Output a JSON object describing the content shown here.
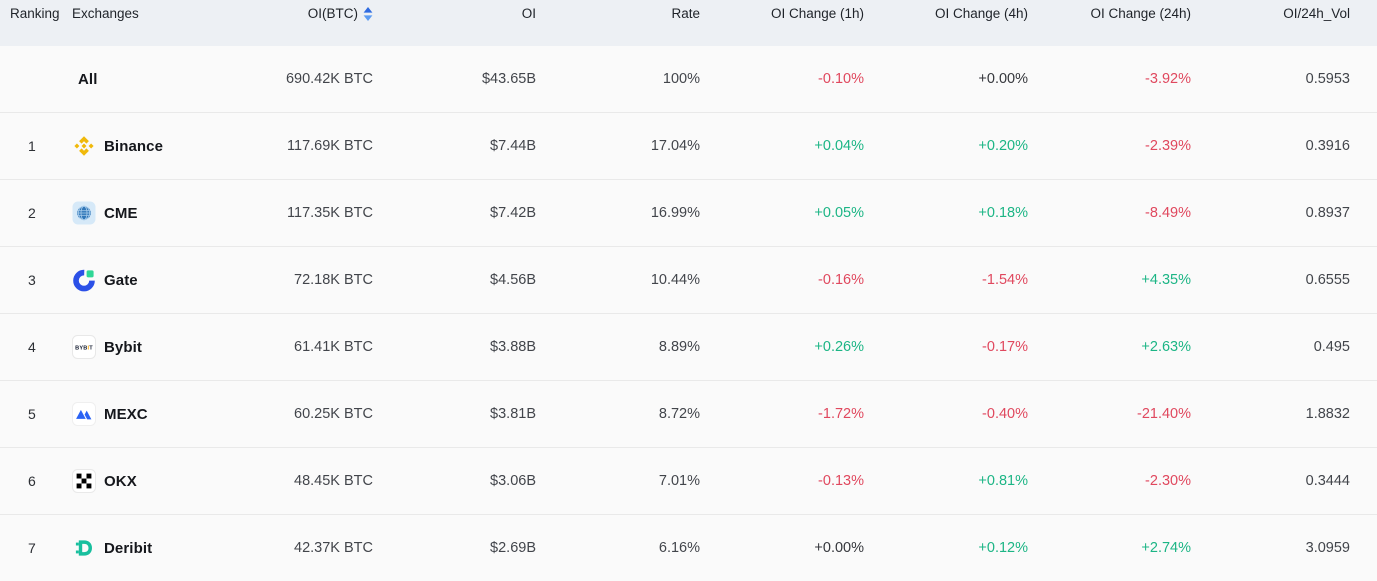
{
  "table": {
    "columns": [
      {
        "key": "ranking",
        "label": "Ranking",
        "align": "left",
        "sortable": false
      },
      {
        "key": "exchanges",
        "label": "Exchanges",
        "align": "left",
        "sortable": false
      },
      {
        "key": "oi_btc",
        "label": "OI(BTC)",
        "align": "right",
        "sortable": true
      },
      {
        "key": "oi",
        "label": "OI",
        "align": "right",
        "sortable": false
      },
      {
        "key": "rate",
        "label": "Rate",
        "align": "right",
        "sortable": false
      },
      {
        "key": "oi_change_1h",
        "label": "OI Change (1h)",
        "align": "right",
        "sortable": false
      },
      {
        "key": "oi_change_4h",
        "label": "OI Change (4h)",
        "align": "right",
        "sortable": false
      },
      {
        "key": "oi_change_24h",
        "label": "OI Change (24h)",
        "align": "right",
        "sortable": false
      },
      {
        "key": "oi_24h_vol",
        "label": "OI/24h_Vol",
        "align": "right",
        "sortable": false
      }
    ],
    "rows": [
      {
        "ranking": "",
        "name": "All",
        "icon": "none",
        "oi_btc": "690.42K BTC",
        "oi": "$43.65B",
        "rate": "100%",
        "changes": [
          {
            "text": "-0.10%",
            "tone": "down"
          },
          {
            "text": "+0.00%",
            "tone": "neutral"
          },
          {
            "text": "-3.92%",
            "tone": "down"
          }
        ],
        "oi_24h_vol": "0.5953"
      },
      {
        "ranking": "1",
        "name": "Binance",
        "icon": "binance",
        "oi_btc": "117.69K BTC",
        "oi": "$7.44B",
        "rate": "17.04%",
        "changes": [
          {
            "text": "+0.04%",
            "tone": "up"
          },
          {
            "text": "+0.20%",
            "tone": "up"
          },
          {
            "text": "-2.39%",
            "tone": "down"
          }
        ],
        "oi_24h_vol": "0.3916"
      },
      {
        "ranking": "2",
        "name": "CME",
        "icon": "cme",
        "oi_btc": "117.35K BTC",
        "oi": "$7.42B",
        "rate": "16.99%",
        "changes": [
          {
            "text": "+0.05%",
            "tone": "up"
          },
          {
            "text": "+0.18%",
            "tone": "up"
          },
          {
            "text": "-8.49%",
            "tone": "down"
          }
        ],
        "oi_24h_vol": "0.8937"
      },
      {
        "ranking": "3",
        "name": "Gate",
        "icon": "gate",
        "oi_btc": "72.18K BTC",
        "oi": "$4.56B",
        "rate": "10.44%",
        "changes": [
          {
            "text": "-0.16%",
            "tone": "down"
          },
          {
            "text": "-1.54%",
            "tone": "down"
          },
          {
            "text": "+4.35%",
            "tone": "up"
          }
        ],
        "oi_24h_vol": "0.6555"
      },
      {
        "ranking": "4",
        "name": "Bybit",
        "icon": "bybit",
        "oi_btc": "61.41K BTC",
        "oi": "$3.88B",
        "rate": "8.89%",
        "changes": [
          {
            "text": "+0.26%",
            "tone": "up"
          },
          {
            "text": "-0.17%",
            "tone": "down"
          },
          {
            "text": "+2.63%",
            "tone": "up"
          }
        ],
        "oi_24h_vol": "0.495"
      },
      {
        "ranking": "5",
        "name": "MEXC",
        "icon": "mexc",
        "oi_btc": "60.25K BTC",
        "oi": "$3.81B",
        "rate": "8.72%",
        "changes": [
          {
            "text": "-1.72%",
            "tone": "down"
          },
          {
            "text": "-0.40%",
            "tone": "down"
          },
          {
            "text": "-21.40%",
            "tone": "down"
          }
        ],
        "oi_24h_vol": "1.8832"
      },
      {
        "ranking": "6",
        "name": "OKX",
        "icon": "okx",
        "oi_btc": "48.45K BTC",
        "oi": "$3.06B",
        "rate": "7.01%",
        "changes": [
          {
            "text": "-0.13%",
            "tone": "down"
          },
          {
            "text": "+0.81%",
            "tone": "up"
          },
          {
            "text": "-2.30%",
            "tone": "down"
          }
        ],
        "oi_24h_vol": "0.3444"
      },
      {
        "ranking": "7",
        "name": "Deribit",
        "icon": "deribit",
        "oi_btc": "42.37K BTC",
        "oi": "$2.69B",
        "rate": "6.16%",
        "changes": [
          {
            "text": "+0.00%",
            "tone": "neutral"
          },
          {
            "text": "+0.12%",
            "tone": "up"
          },
          {
            "text": "+2.74%",
            "tone": "up"
          }
        ],
        "oi_24h_vol": "3.0959"
      }
    ]
  },
  "colors": {
    "positive": "#1cb585",
    "negative": "#e0485e",
    "neutral_text": "#35373c",
    "header_bg": "#edf0f4",
    "row_bg": "#fafafa",
    "divider": "#e9e9e9",
    "sort_arrow_top": "#2f6be0",
    "sort_arrow_bottom": "#5b9bf2",
    "binance_gold": "#f0b90b",
    "cme_blue": "#3177b8",
    "cme_bg": "#d6e9f8",
    "gate_blue": "#2b50e7",
    "gate_green": "#2fd796",
    "bybit_navy": "#121a2e",
    "bybit_orange": "#f7a600",
    "mexc_blue": "#2a62f4",
    "okx_black": "#000000",
    "deribit_teal": "#18bf9e"
  }
}
